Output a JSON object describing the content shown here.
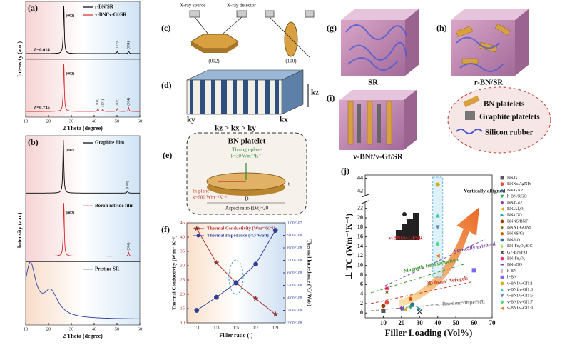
{
  "chart_data": [
    {
      "label": "(a)",
      "type": "xrd",
      "xlabel": "2 Theta (degree)",
      "ylabel": "Intensity (a.u.)",
      "xlim": [
        10,
        60
      ],
      "xticks": [
        10,
        20,
        30,
        40,
        50,
        60
      ],
      "series": [
        {
          "name": "r-BN/SR",
          "color": "#000000",
          "annotation": "δ=0.014",
          "peaks": [
            {
              "x": 26.7,
              "intensity": 100,
              "label": "(002)"
            },
            {
              "x": 50.1,
              "intensity": 4,
              "label": "(102)"
            },
            {
              "x": 55.1,
              "intensity": 5,
              "label": "(004)"
            }
          ]
        },
        {
          "name": "v-BNf/v-Gf/SR",
          "color": "#d62728",
          "annotation": "δ=0.735",
          "peaks": [
            {
              "x": 26.7,
              "intensity": 100,
              "label": "(002)"
            },
            {
              "x": 41.6,
              "intensity": 6,
              "label": "(100)"
            },
            {
              "x": 43.8,
              "intensity": 5,
              "label": "(101)"
            },
            {
              "x": 50.1,
              "intensity": 6,
              "label": "(102)"
            },
            {
              "x": 55.1,
              "intensity": 8,
              "label": "(004)"
            }
          ]
        }
      ]
    },
    {
      "label": "(b)",
      "type": "xrd",
      "stacked": true,
      "xlabel": "2 Theta (degree)",
      "ylabel": "Intensity (a.u.)",
      "xlim": [
        10,
        60
      ],
      "xticks": [
        10,
        20,
        30,
        40,
        50,
        60
      ],
      "series": [
        {
          "name": "Graphite film",
          "color": "#000000",
          "peaks": [
            {
              "x": 26.5,
              "intensity": 100,
              "label": "(002)"
            },
            {
              "x": 54.6,
              "intensity": 4,
              "label": "(004)"
            }
          ]
        },
        {
          "name": "Boron nitride film",
          "color": "#d62728",
          "peaks": [
            {
              "x": 26.7,
              "intensity": 100,
              "label": "(002)"
            },
            {
              "x": 55.1,
              "intensity": 7,
              "label": "(004)"
            }
          ]
        },
        {
          "name": "Pristine SR",
          "color": "#2c3e9e",
          "peaks": [
            {
              "x": 12,
              "intensity": 30,
              "width": 3
            },
            {
              "x": 21,
              "intensity": 14,
              "width": 4
            }
          ]
        }
      ]
    },
    {
      "label": "(f)",
      "type": "line",
      "xlabel": "Filler ratio (:)",
      "ylabel": "Thermal Conductivity (W m⁻¹K⁻¹)",
      "y2label": "Thermal Impedance (°C/ Watt)",
      "categories": [
        "1:1",
        "1:3",
        "1:5",
        "1:7",
        "1:9"
      ],
      "ylim": [
        10,
        45
      ],
      "yticks": [
        10,
        15,
        20,
        25,
        30,
        35,
        40,
        45
      ],
      "y2lim": [
        2e-08,
        1e-07
      ],
      "y2ticks": [
        {
          "value": 2e-08,
          "label": "2.00E-08"
        },
        {
          "value": 3e-08,
          "label": "3.00E-08"
        },
        {
          "value": 4e-08,
          "label": "4.00E-08"
        },
        {
          "value": 5e-08,
          "label": "5.00E-08"
        },
        {
          "value": 6e-08,
          "label": "6.00E-08"
        },
        {
          "value": 7e-08,
          "label": "7.00E-08"
        },
        {
          "value": 8e-08,
          "label": "8.00E-08"
        },
        {
          "value": 9e-08,
          "label": "9.00E-08"
        },
        {
          "value": 1e-07,
          "label": "1.00E-07"
        }
      ],
      "series": [
        {
          "name": "Thermal Conductivity (Wm⁻¹K⁻¹)",
          "color": "#b03030",
          "marker": "star",
          "values": [
            43,
            31,
            24,
            18.5,
            13
          ]
        },
        {
          "name": "Thermal Impedance (°C/ Watt)",
          "color": "#2c3e9e",
          "marker": "o",
          "axis": "y2",
          "values": [
            3e-08,
            4.05e-08,
            5.2e-08,
            6.7e-08,
            9.4e-08
          ]
        }
      ]
    },
    {
      "label": "(j)",
      "type": "scatter",
      "xlabel": "Filler Loading (Vol%)",
      "ylabel": "⊥ TC (Wm⁻¹K⁻¹)",
      "xlim": [
        0,
        70
      ],
      "xticks": [
        10,
        20,
        30,
        40,
        50,
        60,
        70
      ],
      "ylim": [
        -1,
        44.5
      ],
      "ybreak": [
        23,
        41.5
      ],
      "yticks": [
        0,
        2,
        4,
        6,
        8,
        10,
        12,
        14,
        16,
        18,
        20,
        22,
        42,
        44
      ],
      "annotations": [
        {
          "text": "Vertically alligned",
          "color": "#222222"
        },
        {
          "text": "Vertically oriented",
          "color": "#7b4fa8"
        },
        {
          "text": "Magnetic field induction",
          "color": "#3c9a2e"
        },
        {
          "text": "3D foam/ Aerogels",
          "color": "#c0392b"
        },
        {
          "text": "Random dispersed",
          "color": "#8a8a8a"
        },
        {
          "text": "v-BNf/v-Gf/SR",
          "color": "#d62728"
        }
      ],
      "series": [
        {
          "name": "BN/G",
          "color": "#555555",
          "marker": "s",
          "x": [
            10
          ],
          "values": [
            0.5
          ]
        },
        {
          "name": "BNNs/AgNPs",
          "color": "#e74c3c",
          "marker": "o",
          "x": [
            12
          ],
          "values": [
            2.2
          ]
        },
        {
          "name": "BN/GNP",
          "color": "#2e86c1",
          "marker": "^",
          "x": [
            21
          ],
          "values": [
            1
          ]
        },
        {
          "name": "h-BN/RGO",
          "color": "#27ae60",
          "marker": "v",
          "x": [
            25
          ],
          "values": [
            1.2
          ]
        },
        {
          "name": "BN/rGO",
          "color": "#8e44ad",
          "marker": "d",
          "x": [
            20
          ],
          "values": [
            1
          ]
        },
        {
          "name": "BN/Al₂O₃",
          "color": "#d4ac0d",
          "marker": "<",
          "x": [
            22
          ],
          "values": [
            0.8
          ]
        },
        {
          "name": "BN/rGO",
          "color": "#17a2b8",
          "marker": ">",
          "x": [
            30
          ],
          "values": [
            0.9
          ]
        },
        {
          "name": "BNNS/BNF",
          "color": "#a04000",
          "marker": "o",
          "x": [
            10
          ],
          "values": [
            1.5
          ]
        },
        {
          "name": "BNNT-GONS",
          "color": "#7d6608",
          "marker": "star",
          "x": [
            12
          ],
          "values": [
            4.5
          ]
        },
        {
          "name": "BNNS/Gr",
          "color": "#d35400",
          "marker": "p",
          "x": [
            25
          ],
          "values": [
            3
          ]
        },
        {
          "name": "BN/LO",
          "color": "#2874a6",
          "marker": "o",
          "x": [
            26
          ],
          "values": [
            1.8
          ]
        },
        {
          "name": "BN-Fe₃O₄/SiC",
          "color": "#9acd32",
          "marker": "+",
          "x": [
            36
          ],
          "values": [
            6
          ]
        },
        {
          "name": "GF-BN/F.O",
          "color": "#333333",
          "marker": "x",
          "x": [
            30
          ],
          "values": [
            0.3
          ]
        },
        {
          "name": "BN-Fe₃O₄",
          "color": "#e91e63",
          "marker": "*",
          "x": [
            12
          ],
          "values": [
            5.2
          ]
        },
        {
          "name": "BN-rGO",
          "color": "#1f3a93",
          "marker": "-",
          "x": [
            40
          ],
          "values": [
            1.5
          ]
        },
        {
          "name": "h-BN",
          "color": "#888888",
          "marker": "|",
          "x": [
            50
          ],
          "values": [
            7
          ]
        },
        {
          "name": "h-BN",
          "color": "#7b68ee",
          "marker": "s",
          "x": [
            60
          ],
          "values": [
            9
          ]
        },
        {
          "name": "v-BNf/v-Gf1:1",
          "color": "#d4ac0d",
          "marker": "o",
          "x": [
            40
          ],
          "values": [
            43
          ]
        },
        {
          "name": "v-BNf/v-Gf1:3",
          "color": "#48c9b0",
          "marker": "^",
          "x": [
            40
          ],
          "values": [
            20.5
          ]
        },
        {
          "name": "v-BNf/v-Gf1:5",
          "color": "#6c8ebf",
          "marker": "v",
          "x": [
            40
          ],
          "values": [
            18
          ]
        },
        {
          "name": "v-BNf/v-Gf1:7",
          "color": "#58d68d",
          "marker": "d",
          "x": [
            40
          ],
          "values": [
            14.5
          ]
        },
        {
          "name": "v-BNf/v-Gf1:9",
          "color": "#e67e22",
          "marker": "<",
          "x": [
            40
          ],
          "values": [
            12
          ]
        }
      ]
    }
  ],
  "diagrams": {
    "c": {
      "label": "(c)",
      "source": "X-ray source",
      "detector": "X-ray detector",
      "planes": [
        "(002)",
        "(100)"
      ]
    },
    "d": {
      "label": "(d)",
      "axes": [
        "kz",
        "ky",
        "kx"
      ],
      "relation": "kz > kx > ky"
    },
    "e": {
      "label": "(e)",
      "title": "BN platelet",
      "through_plane": [
        "Through-plane",
        "k~30 Wm⁻¹K⁻¹"
      ],
      "in_plane": [
        "In-plane",
        "k~600 Wm⁻¹K⁻¹"
      ],
      "diameter": "D",
      "thickness": "t",
      "aspect": "Aspect ratio (D/t)~20"
    },
    "g": {
      "label": "(g)",
      "caption": "SR"
    },
    "h": {
      "label": "(h)",
      "caption": "r-BN/SR"
    },
    "i": {
      "label": "(i)",
      "caption": "v-BNf/v-Gf/SR",
      "legend": [
        "BN platelets",
        "Graphite platelets",
        "Silicon rubber"
      ]
    }
  }
}
